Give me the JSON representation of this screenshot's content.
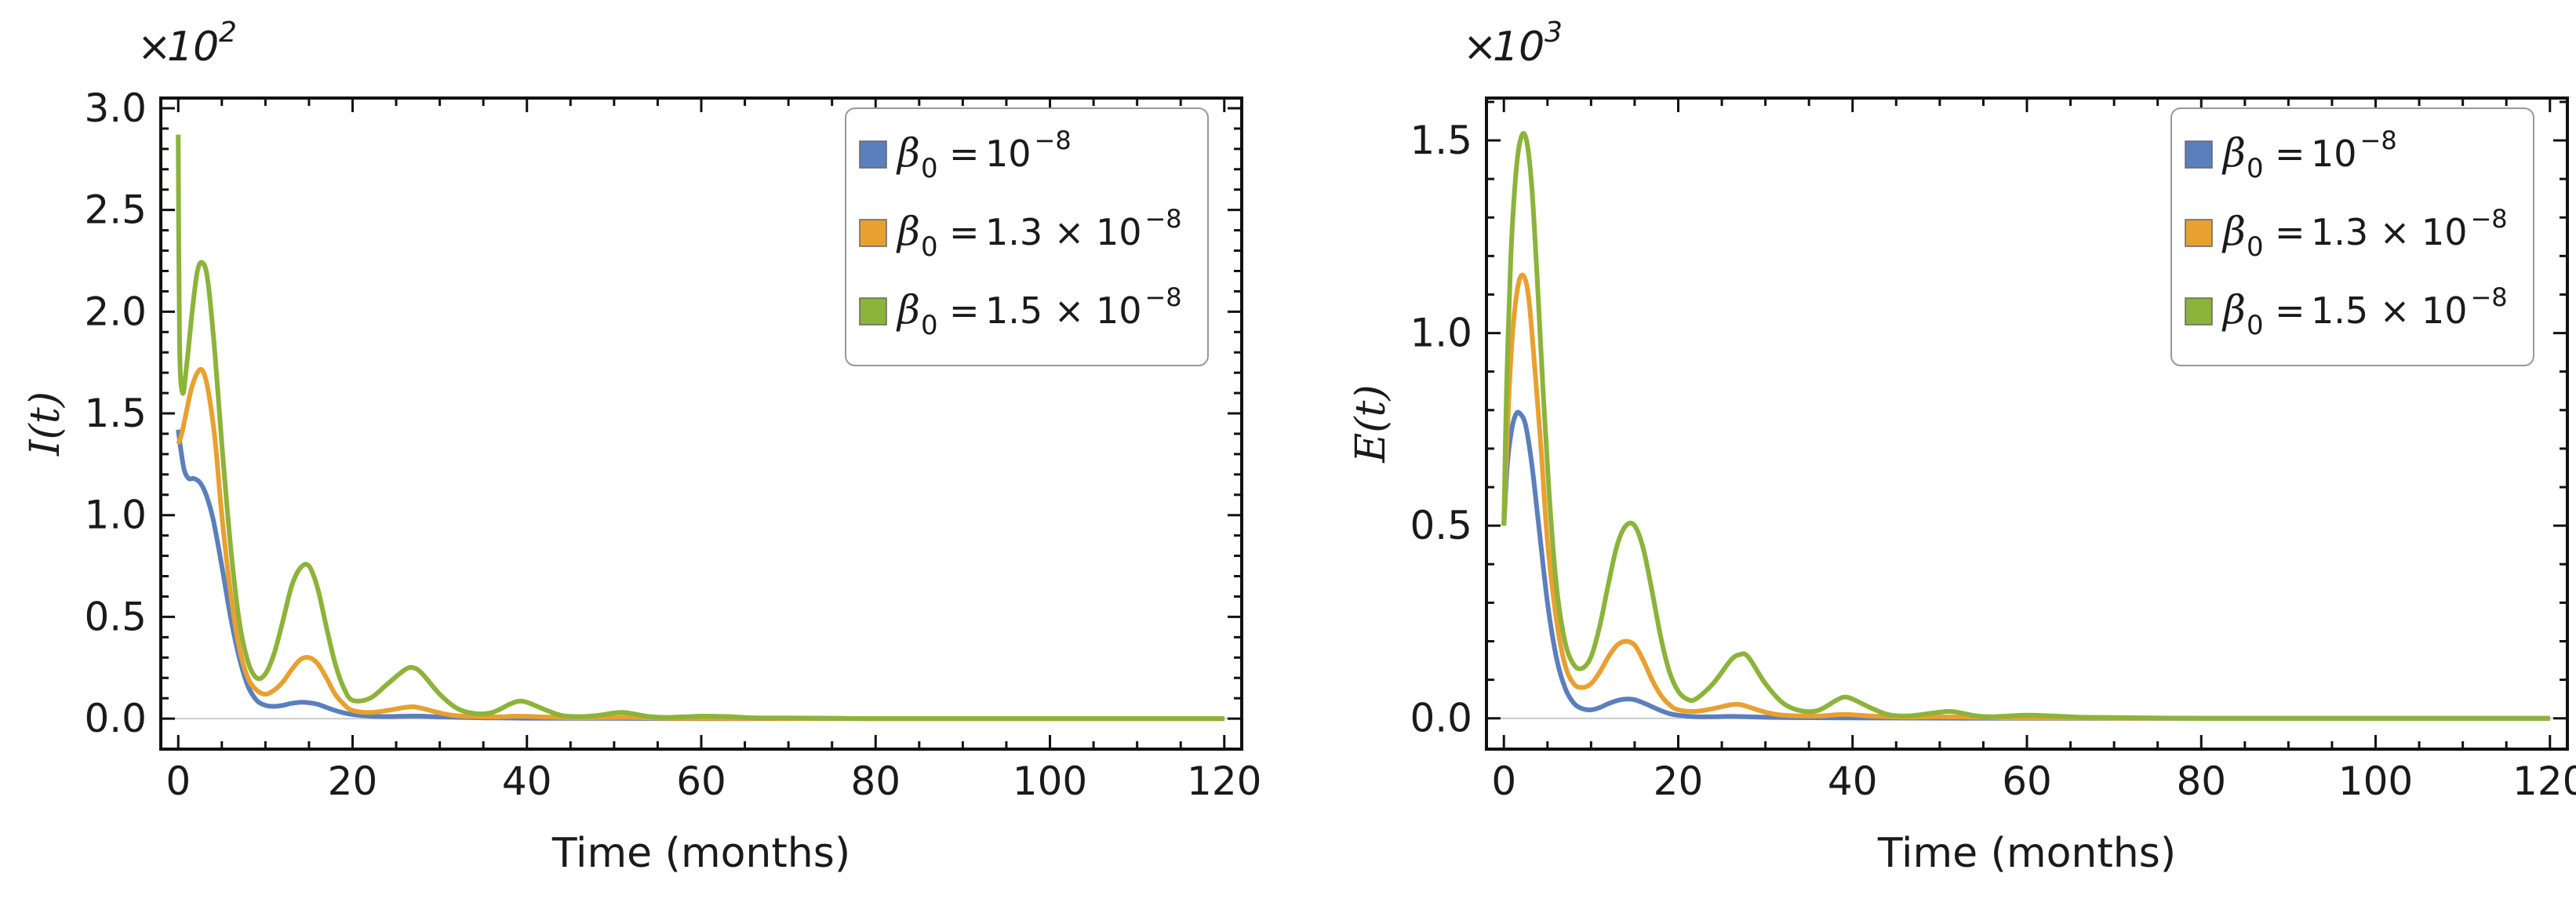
{
  "chart_data": [
    {
      "type": "line",
      "ylabel": "I(t)",
      "xlabel": "Time (months)",
      "y_multiplier": "10",
      "y_multiplier_exp": "2",
      "y_multiplier_prefix": "×",
      "xlim": [
        -2,
        122
      ],
      "ylim": [
        -0.15,
        3.05
      ],
      "xticks": [
        0,
        20,
        40,
        60,
        80,
        100,
        120
      ],
      "yticks": [
        0.0,
        0.5,
        1.0,
        1.5,
        2.0,
        2.5,
        3.0
      ],
      "ytick_labels": [
        "0.0",
        "0.5",
        "1.0",
        "1.5",
        "2.0",
        "2.5",
        "3.0"
      ],
      "xtick_labels": [
        "0",
        "20",
        "40",
        "60",
        "80",
        "100",
        "120"
      ],
      "legend_position": "top-right",
      "series": [
        {
          "name": "β0 = 10^-8",
          "legend_value": "10",
          "legend_exp": "−8",
          "legend_prefix": "",
          "color": "#5b7fbd",
          "x": [
            0,
            0.3,
            0.7,
            1.2,
            1.8,
            2.5,
            3.2,
            4,
            5,
            6,
            7,
            8,
            9,
            10,
            11,
            12,
            13,
            14,
            15,
            16,
            17,
            18,
            19,
            20,
            22,
            24,
            26,
            28,
            30,
            35,
            40,
            50,
            60,
            80,
            100,
            120
          ],
          "y": [
            1.42,
            1.32,
            1.22,
            1.18,
            1.18,
            1.16,
            1.1,
            0.98,
            0.75,
            0.5,
            0.3,
            0.16,
            0.09,
            0.065,
            0.06,
            0.065,
            0.075,
            0.08,
            0.078,
            0.07,
            0.055,
            0.04,
            0.028,
            0.02,
            0.012,
            0.01,
            0.012,
            0.012,
            0.008,
            0.004,
            0.002,
            0.001,
            0.0,
            0.0,
            0.0,
            0.0
          ]
        },
        {
          "name": "β0 = 1.3×10^-8",
          "legend_value": "1.3 × 10",
          "legend_exp": "−8",
          "legend_prefix": "",
          "color": "#e8a030",
          "x": [
            0,
            0.4,
            0.9,
            1.5,
            2.2,
            2.8,
            3.4,
            4.2,
            5,
            6,
            7,
            8,
            9,
            10,
            11,
            12,
            13,
            14,
            15,
            16,
            17,
            18,
            19,
            20,
            22,
            24,
            26,
            27,
            28,
            30,
            32,
            36,
            39,
            42,
            46,
            51,
            56,
            60,
            80,
            100,
            120
          ],
          "y": [
            1.35,
            1.4,
            1.5,
            1.62,
            1.7,
            1.71,
            1.62,
            1.38,
            1.0,
            0.62,
            0.35,
            0.2,
            0.14,
            0.12,
            0.14,
            0.18,
            0.24,
            0.29,
            0.3,
            0.27,
            0.2,
            0.12,
            0.07,
            0.04,
            0.03,
            0.04,
            0.055,
            0.058,
            0.05,
            0.028,
            0.014,
            0.008,
            0.012,
            0.008,
            0.004,
            0.006,
            0.002,
            0.001,
            0.0,
            0.0,
            0.0
          ]
        },
        {
          "name": "β0 = 1.5×10^-8",
          "legend_value": "1.5 × 10",
          "legend_exp": "−8",
          "legend_prefix": "",
          "color": "#8cb33a",
          "x": [
            0,
            0.15,
            0.5,
            1,
            1.6,
            2.2,
            2.8,
            3.4,
            4.2,
            5,
            6,
            7,
            8,
            9,
            10,
            11,
            12,
            13,
            14,
            15,
            16,
            17,
            18,
            19,
            20,
            22,
            24,
            26,
            27,
            28,
            30,
            32,
            34,
            36,
            38,
            39,
            40,
            42,
            44,
            46,
            48,
            50,
            51,
            52,
            54,
            56,
            60,
            63,
            66,
            70,
            75,
            80,
            100,
            120
          ],
          "y": [
            2.87,
            1.85,
            1.6,
            1.75,
            2.0,
            2.2,
            2.24,
            2.15,
            1.8,
            1.35,
            0.85,
            0.48,
            0.28,
            0.2,
            0.22,
            0.32,
            0.48,
            0.65,
            0.74,
            0.75,
            0.64,
            0.45,
            0.27,
            0.15,
            0.09,
            0.1,
            0.17,
            0.24,
            0.25,
            0.22,
            0.12,
            0.05,
            0.025,
            0.03,
            0.07,
            0.085,
            0.08,
            0.045,
            0.015,
            0.01,
            0.015,
            0.028,
            0.03,
            0.025,
            0.01,
            0.006,
            0.012,
            0.01,
            0.004,
            0.003,
            0.002,
            0.0,
            0.0,
            0.0
          ]
        }
      ]
    },
    {
      "type": "line",
      "ylabel": "E(t)",
      "xlabel": "Time (months)",
      "y_multiplier": "10",
      "y_multiplier_exp": "3",
      "y_multiplier_prefix": "×",
      "xlim": [
        -2,
        122
      ],
      "ylim": [
        -0.08,
        1.61
      ],
      "xticks": [
        0,
        20,
        40,
        60,
        80,
        100,
        120
      ],
      "yticks": [
        0.0,
        0.5,
        1.0,
        1.5
      ],
      "ytick_labels": [
        "0.0",
        "0.5",
        "1.0",
        "1.5"
      ],
      "xtick_labels": [
        "0",
        "20",
        "40",
        "60",
        "80",
        "100",
        "120"
      ],
      "legend_position": "top-right",
      "series": [
        {
          "name": "β0 = 10^-8",
          "legend_value": "10",
          "legend_exp": "−8",
          "legend_prefix": "",
          "color": "#5b7fbd",
          "x": [
            0,
            0.4,
            0.9,
            1.4,
            1.9,
            2.5,
            3.2,
            4,
            5,
            6,
            7,
            8,
            9,
            10,
            11,
            12,
            13,
            14,
            15,
            16,
            17,
            18,
            19,
            20,
            22,
            24,
            26,
            28,
            32,
            40,
            60,
            80,
            100,
            120
          ],
          "y": [
            0.5,
            0.66,
            0.75,
            0.79,
            0.79,
            0.76,
            0.66,
            0.5,
            0.3,
            0.16,
            0.08,
            0.04,
            0.025,
            0.022,
            0.028,
            0.038,
            0.046,
            0.05,
            0.048,
            0.04,
            0.03,
            0.02,
            0.012,
            0.008,
            0.004,
            0.004,
            0.005,
            0.004,
            0.002,
            0.001,
            0.0,
            0.0,
            0.0,
            0.0
          ]
        },
        {
          "name": "β0 = 1.3×10^-8",
          "legend_value": "1.3 × 10",
          "legend_exp": "−8",
          "legend_prefix": "",
          "color": "#e8a030",
          "x": [
            0,
            0.5,
            1,
            1.6,
            2.2,
            2.8,
            3.4,
            4.2,
            5,
            6,
            7,
            8,
            9,
            10,
            11,
            12,
            13,
            14,
            15,
            16,
            17,
            18,
            19,
            20,
            22,
            24,
            26,
            27,
            28,
            30,
            32,
            36,
            39,
            42,
            46,
            50,
            56,
            60,
            80,
            100,
            120
          ],
          "y": [
            0.5,
            0.8,
            1.0,
            1.12,
            1.15,
            1.1,
            0.95,
            0.72,
            0.46,
            0.26,
            0.14,
            0.09,
            0.08,
            0.09,
            0.12,
            0.16,
            0.19,
            0.2,
            0.19,
            0.15,
            0.1,
            0.06,
            0.035,
            0.022,
            0.018,
            0.025,
            0.035,
            0.036,
            0.03,
            0.016,
            0.008,
            0.006,
            0.01,
            0.006,
            0.003,
            0.004,
            0.002,
            0.001,
            0.0,
            0.0,
            0.0
          ]
        },
        {
          "name": "β0 = 1.5×10^-8",
          "legend_value": "1.5 × 10",
          "legend_exp": "−8",
          "legend_prefix": "",
          "color": "#8cb33a",
          "x": [
            0,
            0.3,
            0.8,
            1.4,
            2,
            2.6,
            3.2,
            3.8,
            4.5,
            5.2,
            6,
            7,
            8,
            9,
            10,
            11,
            12,
            13,
            14,
            15,
            16,
            17,
            18,
            19,
            20,
            21,
            22,
            24,
            26,
            27,
            28,
            30,
            32,
            34,
            36,
            38,
            39,
            40,
            42,
            44,
            46,
            48,
            50,
            51,
            52,
            54,
            56,
            60,
            63,
            66,
            70,
            75,
            80,
            100,
            120
          ],
          "y": [
            0.5,
            0.85,
            1.2,
            1.42,
            1.51,
            1.5,
            1.38,
            1.15,
            0.85,
            0.58,
            0.35,
            0.2,
            0.14,
            0.13,
            0.16,
            0.24,
            0.35,
            0.45,
            0.5,
            0.5,
            0.44,
            0.33,
            0.21,
            0.12,
            0.07,
            0.05,
            0.05,
            0.09,
            0.15,
            0.165,
            0.16,
            0.09,
            0.04,
            0.02,
            0.02,
            0.045,
            0.055,
            0.05,
            0.028,
            0.01,
            0.006,
            0.01,
            0.016,
            0.018,
            0.016,
            0.007,
            0.004,
            0.008,
            0.006,
            0.003,
            0.002,
            0.001,
            0.0,
            0.0,
            0.0
          ]
        }
      ]
    }
  ]
}
